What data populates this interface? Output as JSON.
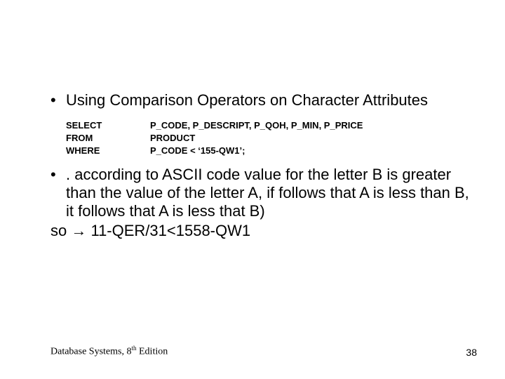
{
  "bullets": {
    "b1": "Using Comparison Operators on Character Attributes",
    "b2": ". according to ASCII code value for the letter B is greater than the value of the letter A, if follows that A is less than B, it follows that A is less that B)"
  },
  "sql": {
    "select_kw": "SELECT",
    "select_body": "P_CODE, P_DESCRIPT, P_QOH, P_MIN, P_PRICE",
    "from_kw": "FROM",
    "from_body": "PRODUCT",
    "where_kw": "WHERE",
    "where_body": "P_CODE < ‘155-QW1’;"
  },
  "so_line_prefix": "so ",
  "so_line_arrow": "→",
  "so_line_rest": " 11-QER/31<1558-QW1",
  "footer": {
    "book_prefix": "Database Systems, 8",
    "book_sup": "th",
    "book_suffix": " Edition",
    "page": "38"
  },
  "bullet_glyph": "•"
}
